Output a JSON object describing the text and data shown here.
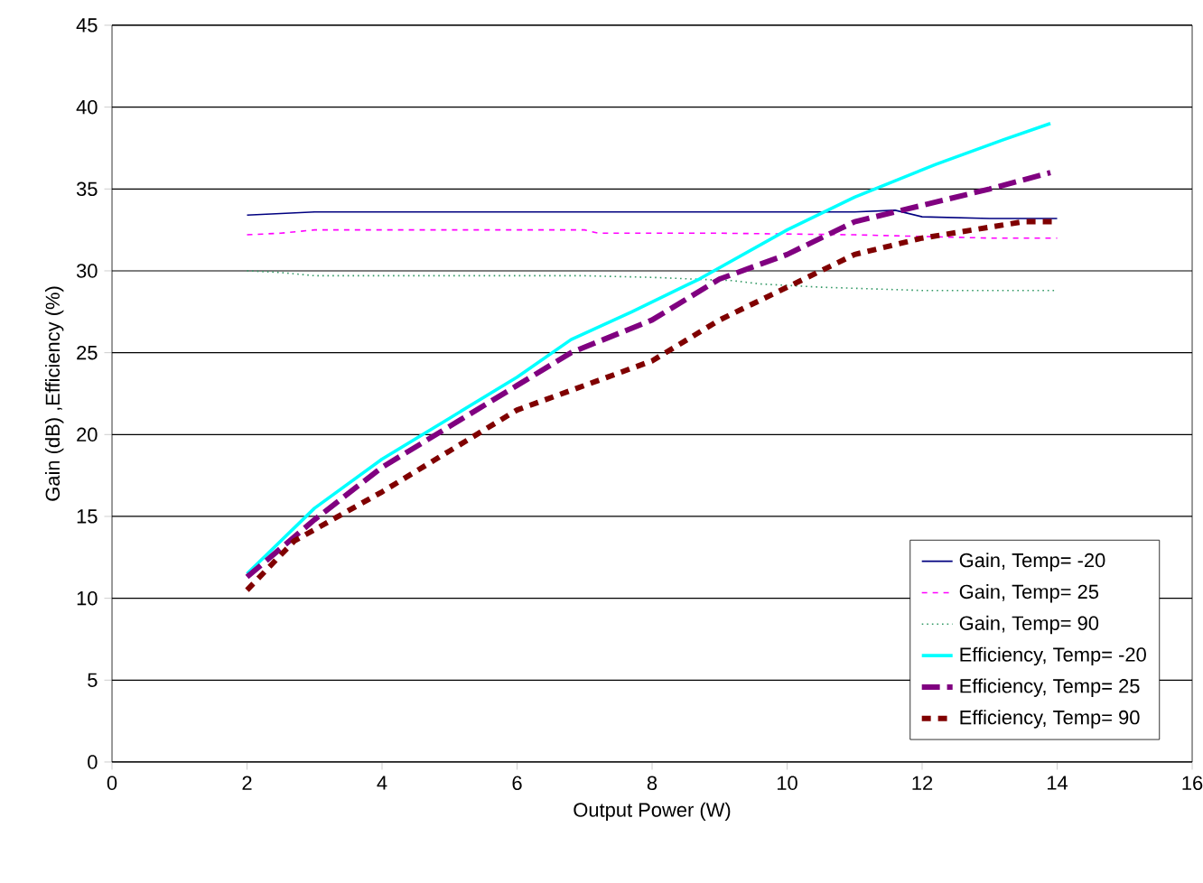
{
  "chart_data": {
    "type": "line",
    "xlabel": "Output Power (W)",
    "ylabel": "Gain (dB) ,Efficiency (%)",
    "xlim": [
      0,
      16
    ],
    "xticks": [
      0,
      2,
      4,
      6,
      8,
      10,
      12,
      14,
      16
    ],
    "ylim": [
      0,
      45
    ],
    "yticks": [
      0,
      5,
      10,
      15,
      20,
      25,
      30,
      35,
      40,
      45
    ],
    "grid": "y",
    "legend": "bottom right",
    "marker": "none",
    "series": [
      {
        "name": "Gain, Temp= -20",
        "color": "#000080",
        "line_style": "solid",
        "x": [
          2,
          3,
          5,
          7,
          9,
          11,
          11.6,
          12,
          13,
          14
        ],
        "values": [
          33.4,
          33.6,
          33.6,
          33.6,
          33.6,
          33.6,
          33.7,
          33.3,
          33.2,
          33.2
        ]
      },
      {
        "name": "Gain, Temp= 25",
        "color": "#ff00ff",
        "line_style": "dashed",
        "x": [
          2,
          2.5,
          3,
          5,
          7,
          7.2,
          9,
          11,
          13,
          14
        ],
        "values": [
          32.2,
          32.3,
          32.5,
          32.5,
          32.5,
          32.3,
          32.3,
          32.2,
          32.0,
          32.0
        ]
      },
      {
        "name": "Gain, Temp= 90",
        "color": "#339966",
        "line_style": "dotted",
        "x": [
          2,
          2.5,
          3,
          5,
          7,
          8,
          9.2,
          9.6,
          10.5,
          12,
          14
        ],
        "values": [
          30.0,
          29.9,
          29.7,
          29.7,
          29.7,
          29.6,
          29.4,
          29.2,
          29.0,
          28.8,
          28.8
        ]
      },
      {
        "name": "Efficiency, Temp= -20",
        "color": "#00ffff",
        "line_style": "solid",
        "x": [
          2,
          3,
          4,
          5,
          6,
          6.8,
          7.7,
          8.7,
          10,
          11,
          12.2,
          13.2,
          13.9
        ],
        "values": [
          11.5,
          15.5,
          18.5,
          21,
          23.5,
          25.8,
          27.5,
          29.5,
          32.5,
          34.5,
          36.5,
          38,
          39
        ]
      },
      {
        "name": "Efficiency, Temp= 25",
        "color": "#800080",
        "line_style": "dashed",
        "x": [
          2,
          3,
          4,
          5,
          6,
          6.8,
          8,
          9,
          10,
          11,
          12,
          13,
          13.9
        ],
        "values": [
          11.3,
          14.8,
          18,
          20.5,
          23,
          25,
          27,
          29.5,
          31,
          33,
          34,
          35,
          36
        ]
      },
      {
        "name": "Efficiency, Temp= 90",
        "color": "#800000",
        "line_style": "dashed",
        "x": [
          2,
          2.7,
          4,
          5,
          6,
          7,
          8,
          9,
          10,
          11,
          12,
          13.5,
          14
        ],
        "values": [
          10.5,
          13.5,
          16.5,
          19,
          21.5,
          23,
          24.5,
          27,
          29,
          31,
          32,
          33,
          33
        ]
      }
    ]
  }
}
